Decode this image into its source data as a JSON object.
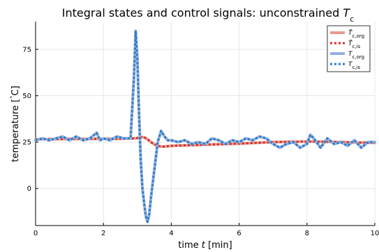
{
  "chart_data": {
    "type": "line",
    "title": "Integral states and control signals: unconstrained T_c",
    "title_parts": [
      "Integral states and control signals: unconstrained ",
      "T",
      "c"
    ],
    "xlabel_parts": [
      "time ",
      "t",
      " [min]"
    ],
    "ylabel_parts": [
      "temperature [",
      "°",
      "C]"
    ],
    "xlim": [
      0,
      10
    ],
    "ylim": [
      -20,
      90
    ],
    "xticks": [
      0,
      2,
      4,
      6,
      8,
      10
    ],
    "yticks": [
      0,
      25,
      50,
      75
    ],
    "xtick_labels": [
      "0",
      "2",
      "4",
      "6",
      "8",
      "10"
    ],
    "ytick_labels": [
      "0",
      "25",
      "50",
      "75"
    ],
    "grid": true,
    "legend_placement": "top-right",
    "series": [
      {
        "name": "T̄c,org",
        "legend": {
          "sym": "T̄",
          "sub": "c,org"
        },
        "color": "#e8998f",
        "style": "solid",
        "x": [
          0,
          0.5,
          1,
          1.5,
          2,
          2.5,
          2.9,
          3.0,
          3.1,
          3.2,
          3.3,
          3.4,
          3.5,
          3.6,
          3.7,
          3.8,
          4.0,
          4.5,
          5,
          5.5,
          6,
          6.5,
          7,
          7.5,
          8,
          8.5,
          9,
          9.5,
          10
        ],
        "y": [
          26.5,
          26.6,
          26.7,
          26.7,
          26.8,
          26.8,
          27.0,
          27.2,
          27.8,
          27.6,
          26.5,
          25.0,
          23.8,
          23.0,
          22.6,
          22.6,
          23.0,
          23.3,
          23.6,
          23.9,
          24.2,
          24.6,
          25.0,
          25.2,
          25.3,
          25.2,
          25.0,
          24.8,
          24.6
        ]
      },
      {
        "name": "T̄c,is",
        "legend": {
          "sym": "T̄",
          "sub": "c,is"
        },
        "color": "#d0312d",
        "style": "dotted",
        "x": [
          0,
          0.5,
          1,
          1.5,
          2,
          2.5,
          2.9,
          3.0,
          3.1,
          3.2,
          3.3,
          3.4,
          3.5,
          3.6,
          3.7,
          3.8,
          4.0,
          4.5,
          5,
          5.5,
          6,
          6.5,
          7,
          7.5,
          8,
          8.5,
          9,
          9.5,
          10
        ],
        "y": [
          26.5,
          26.6,
          26.7,
          26.7,
          26.8,
          26.8,
          27.0,
          27.2,
          27.8,
          27.6,
          26.5,
          25.0,
          23.8,
          23.0,
          22.6,
          22.6,
          23.0,
          23.3,
          23.6,
          23.9,
          24.2,
          24.6,
          25.0,
          25.2,
          25.3,
          25.2,
          25.0,
          24.8,
          24.6
        ]
      },
      {
        "name": "Tc,org",
        "legend": {
          "sym": "T",
          "sub": "c,org"
        },
        "color": "#95aede",
        "style": "solid",
        "x": [
          0,
          0.2,
          0.4,
          0.6,
          0.8,
          1.0,
          1.1,
          1.2,
          1.4,
          1.6,
          1.8,
          1.9,
          2.0,
          2.2,
          2.4,
          2.6,
          2.8,
          2.9,
          2.95,
          3.0,
          3.05,
          3.1,
          3.15,
          3.2,
          3.25,
          3.3,
          3.35,
          3.4,
          3.5,
          3.6,
          3.7,
          3.8,
          3.9,
          4.0,
          4.2,
          4.4,
          4.6,
          4.8,
          5.0,
          5.2,
          5.4,
          5.6,
          5.8,
          6.0,
          6.2,
          6.4,
          6.6,
          6.8,
          7.0,
          7.2,
          7.4,
          7.6,
          7.8,
          8.0,
          8.1,
          8.2,
          8.4,
          8.6,
          8.8,
          9.0,
          9.2,
          9.4,
          9.6,
          9.8,
          10.0
        ],
        "y": [
          26,
          27,
          26,
          27,
          28,
          26,
          27,
          28,
          26,
          27,
          30,
          26,
          27,
          26,
          28,
          27,
          27,
          60,
          85,
          70,
          40,
          15,
          0,
          -8,
          -15,
          -18,
          -14,
          -5,
          10,
          25,
          31,
          28,
          26,
          26,
          25,
          26,
          24,
          25,
          24,
          27,
          26,
          24,
          26,
          25,
          27,
          26,
          28,
          27,
          24,
          22,
          24,
          25,
          22,
          24,
          29,
          27,
          22,
          27,
          24,
          25,
          23,
          26,
          22,
          25,
          25
        ]
      },
      {
        "name": "Tc,is",
        "legend": {
          "sym": "T",
          "sub": "c,is"
        },
        "color": "#2a7dc2",
        "style": "dotted",
        "x": [
          0,
          0.2,
          0.4,
          0.6,
          0.8,
          1.0,
          1.1,
          1.2,
          1.4,
          1.6,
          1.8,
          1.9,
          2.0,
          2.2,
          2.4,
          2.6,
          2.8,
          2.9,
          2.95,
          3.0,
          3.05,
          3.1,
          3.15,
          3.2,
          3.25,
          3.3,
          3.35,
          3.4,
          3.5,
          3.6,
          3.7,
          3.8,
          3.9,
          4.0,
          4.2,
          4.4,
          4.6,
          4.8,
          5.0,
          5.2,
          5.4,
          5.6,
          5.8,
          6.0,
          6.2,
          6.4,
          6.6,
          6.8,
          7.0,
          7.2,
          7.4,
          7.6,
          7.8,
          8.0,
          8.1,
          8.2,
          8.4,
          8.6,
          8.8,
          9.0,
          9.2,
          9.4,
          9.6,
          9.8,
          10.0
        ],
        "y": [
          26,
          27,
          26,
          27,
          28,
          26,
          27,
          28,
          26,
          27,
          30,
          26,
          27,
          26,
          28,
          27,
          27,
          60,
          85,
          70,
          40,
          15,
          0,
          -8,
          -15,
          -18,
          -14,
          -5,
          10,
          25,
          31,
          28,
          26,
          26,
          25,
          26,
          24,
          25,
          24,
          27,
          26,
          24,
          26,
          25,
          27,
          26,
          28,
          27,
          24,
          22,
          24,
          25,
          22,
          24,
          29,
          27,
          22,
          27,
          24,
          25,
          23,
          26,
          22,
          25,
          25
        ]
      }
    ]
  }
}
